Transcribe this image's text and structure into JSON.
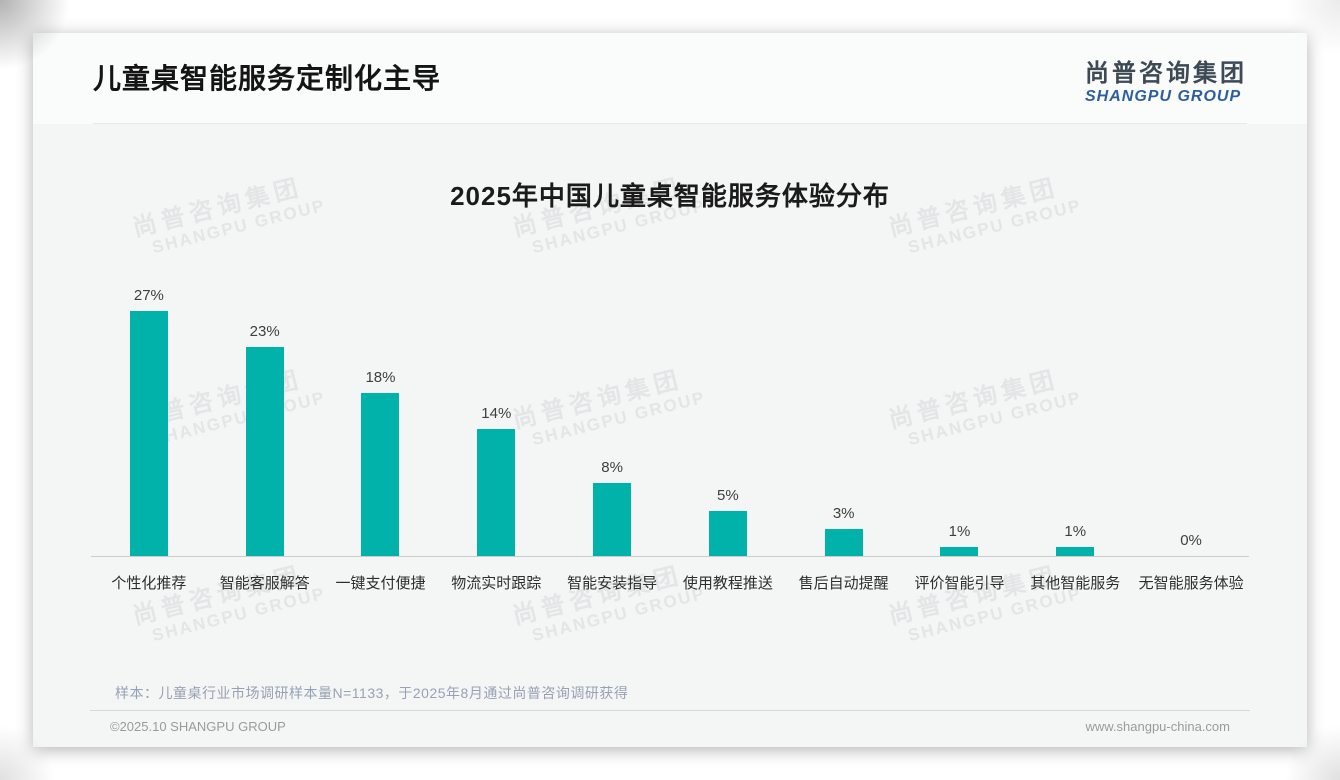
{
  "page": {
    "title": "儿童桌智能服务定制化主导",
    "logo": {
      "cn": "尚普咨询集团",
      "en": "SHANGPU GROUP"
    },
    "watermark": {
      "line1": "尚普咨询集团",
      "line2": "SHANGPU GROUP"
    },
    "note": "样本：儿童桌行业市场调研样本量N=1133，于2025年8月通过尚普咨询调研获得",
    "footer": {
      "left": "©2025.10 SHANGPU GROUP",
      "right": "www.shangpu-china.com"
    }
  },
  "chart_data": {
    "type": "bar",
    "title": "2025年中国儿童桌智能服务体验分布",
    "categories": [
      "个性化推荐",
      "智能客服解答",
      "一键支付便捷",
      "物流实时跟踪",
      "智能安装指导",
      "使用教程推送",
      "售后自动提醒",
      "评价智能引导",
      "其他智能服务",
      "无智能服务体验"
    ],
    "values": [
      27,
      23,
      18,
      14,
      8,
      5,
      3,
      1,
      1,
      0
    ],
    "value_labels": [
      "27%",
      "23%",
      "18%",
      "14%",
      "8%",
      "5%",
      "3%",
      "1%",
      "1%",
      "0%"
    ],
    "bar_color": "#00b2a9",
    "xlabel": "",
    "ylabel": "",
    "ylim": [
      0,
      30
    ],
    "grid": false,
    "legend": false
  }
}
